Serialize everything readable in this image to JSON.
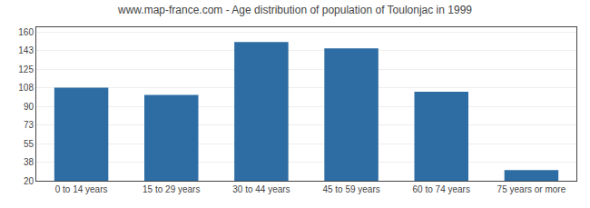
{
  "chart_data": {
    "type": "bar",
    "title": "www.map-france.com - Age distribution of population of Toulonjac in 1999",
    "categories": [
      "0 to 14 years",
      "15 to 29 years",
      "30 to 44 years",
      "45 to 59 years",
      "60 to 74 years",
      "75 years or more"
    ],
    "values": [
      108,
      101,
      151,
      145,
      104,
      30
    ],
    "color": "#2E6DA4",
    "ylim": [
      20,
      165
    ],
    "yticks": [
      20,
      38,
      55,
      73,
      90,
      108,
      125,
      143,
      160
    ],
    "grid": true
  }
}
